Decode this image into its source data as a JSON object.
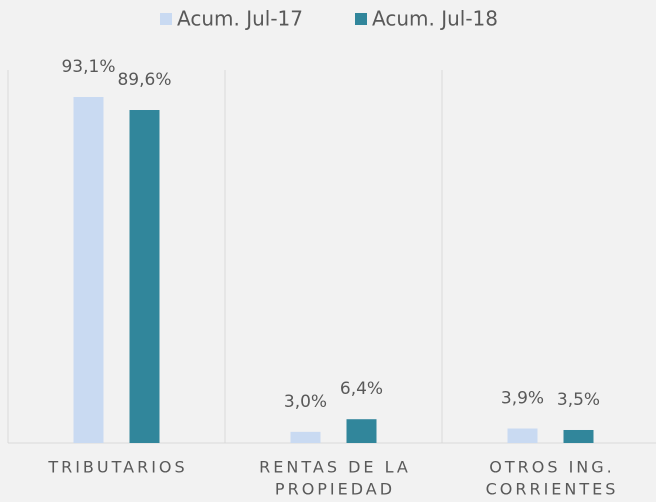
{
  "chart_data": {
    "type": "bar",
    "categories": [
      [
        "TRIBUTARIOS"
      ],
      [
        "RENTAS DE LA",
        "PROPIEDAD"
      ],
      [
        "OTROS ING.",
        "CORRIENTES"
      ]
    ],
    "series": [
      {
        "name": "Acum. Jul-17",
        "color": "#c9daf2",
        "values": [
          93.1,
          3.0,
          3.9
        ],
        "value_labels": [
          "93,1%",
          "3,0%",
          "3,9%"
        ]
      },
      {
        "name": "Acum. Jul-18",
        "color": "#31869b",
        "values": [
          89.6,
          6.4,
          3.5
        ],
        "value_labels": [
          "89,6%",
          "6,4%",
          "3,5%"
        ]
      }
    ],
    "legend": "top"
  }
}
